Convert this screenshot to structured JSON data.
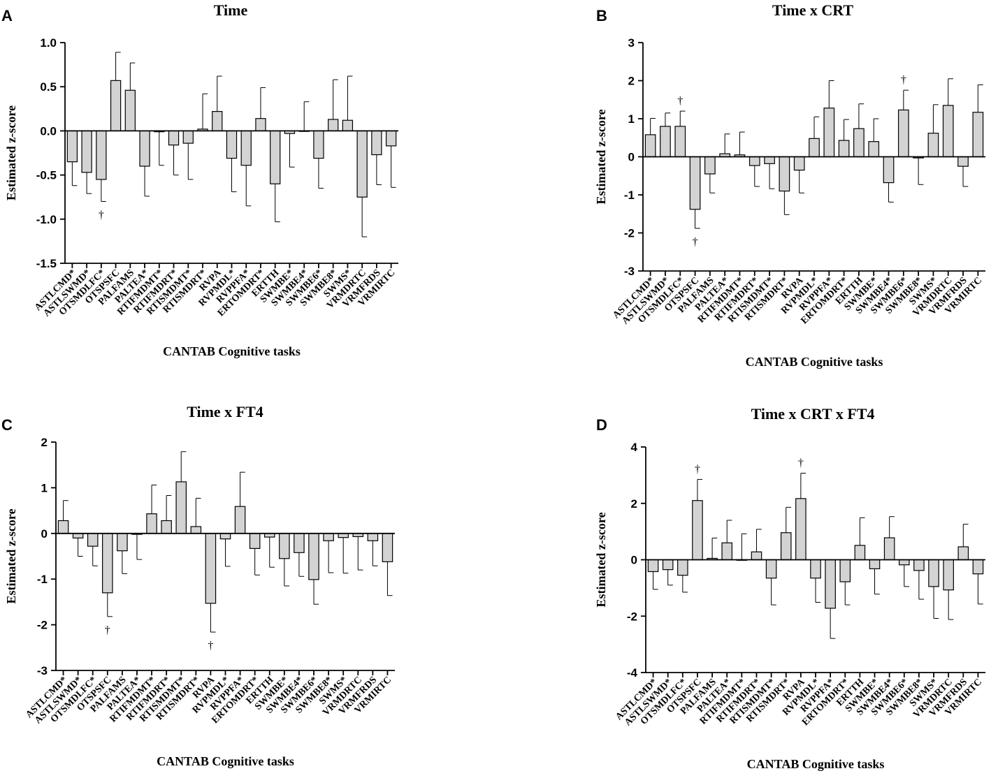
{
  "chart_data": [
    {
      "type": "bar",
      "panel": "A",
      "title": "Time",
      "xlabel": "CANTAB Cognitive tasks",
      "ylabel": "Estimated z-score",
      "ylim": [
        -1.5,
        1.0
      ],
      "yticks": [
        "1.0",
        "0.5",
        "0.0",
        "-0.5",
        "-1.0",
        "-1.5"
      ],
      "ytick_values": [
        1.0,
        0.5,
        0.0,
        -0.5,
        -1.0,
        -1.5
      ],
      "categories": [
        "ASTLCMD*",
        "ASTLSWMD*",
        "OTSMDLFC*",
        "OTSPSFC",
        "PALFAMS",
        "PALTEA*",
        "RTIFMDMT*",
        "RTIFMDRT*",
        "RTISMDMT*",
        "RTISMDRT*",
        "RVPA",
        "RVPMDL*",
        "RVPPFA*",
        "ERTOMDRT*",
        "ERTTH",
        "SWMBE*",
        "SWMBE4*",
        "SWMBE6*",
        "SWMBE8*",
        "SWMS*",
        "VRMDRTC",
        "VRMFRDS",
        "VRMIRTC"
      ],
      "values": [
        -0.35,
        -0.47,
        -0.55,
        0.57,
        0.46,
        -0.4,
        -0.01,
        -0.16,
        -0.14,
        0.02,
        0.22,
        -0.31,
        -0.39,
        0.14,
        -0.6,
        -0.03,
        0.0,
        -0.31,
        0.13,
        0.12,
        -0.75,
        -0.27,
        -0.17
      ],
      "errors": [
        0.27,
        0.24,
        0.25,
        0.32,
        0.31,
        0.34,
        0.38,
        0.34,
        0.41,
        0.4,
        0.4,
        0.38,
        0.46,
        0.35,
        0.43,
        0.38,
        0.33,
        0.34,
        0.45,
        0.5,
        0.45,
        0.34,
        0.47
      ],
      "daggers": [
        {
          "index": 2,
          "position": "below",
          "symbol": "†"
        }
      ]
    },
    {
      "type": "bar",
      "panel": "B",
      "title": "Time x CRT",
      "xlabel": "CANTAB Cognitive tasks",
      "ylabel": "Estimated z-score",
      "ylim": [
        -3,
        3
      ],
      "yticks": [
        "3",
        "2",
        "1",
        "0",
        "-1",
        "-2",
        "-3"
      ],
      "ytick_values": [
        3,
        2,
        1,
        0,
        -1,
        -2,
        -3
      ],
      "categories": [
        "ASTLCMD*",
        "ASTLSWMD*",
        "OTSMDLFC*",
        "OTSPSFC",
        "PALFAMS",
        "PALTEA*",
        "RTIFMDMT*",
        "RTIFMDRT*",
        "RTISMDMT*",
        "RTISMDRT*",
        "RVPA",
        "RVPMDL*",
        "RVPPFA*",
        "ERTOMDRT*",
        "ERTTH",
        "SWMBE*",
        "SWMBE4*",
        "SWMBE6*",
        "SWMBE8*",
        "SWMS*",
        "VRMDRTC",
        "VRMFRDS",
        "VRMIRTC"
      ],
      "values": [
        0.58,
        0.8,
        0.8,
        -1.38,
        -0.45,
        0.08,
        0.05,
        -0.23,
        -0.18,
        -0.9,
        -0.35,
        0.48,
        1.28,
        0.43,
        0.74,
        0.4,
        -0.68,
        1.23,
        -0.03,
        0.62,
        1.35,
        -0.25,
        1.17
      ],
      "errors": [
        0.43,
        0.35,
        0.4,
        0.5,
        0.5,
        0.52,
        0.6,
        0.55,
        0.66,
        0.62,
        0.6,
        0.57,
        0.72,
        0.55,
        0.65,
        0.6,
        0.51,
        0.52,
        0.7,
        0.75,
        0.7,
        0.53,
        0.72
      ],
      "daggers": [
        {
          "index": 2,
          "position": "above",
          "symbol": "†"
        },
        {
          "index": 3,
          "position": "below",
          "symbol": "†"
        },
        {
          "index": 17,
          "position": "above",
          "symbol": "†"
        }
      ]
    },
    {
      "type": "bar",
      "panel": "C",
      "title": "Time x FT4",
      "xlabel": "CANTAB Cognitive tasks",
      "ylabel": "Estimated z-score",
      "ylim": [
        -3,
        2
      ],
      "yticks": [
        "2",
        "1",
        "0",
        "-1",
        "-2",
        "-3"
      ],
      "ytick_values": [
        2,
        1,
        0,
        -1,
        -2,
        -3
      ],
      "categories": [
        "ASTLCMD*",
        "ASTLSWMD*",
        "OTSMDLFC*",
        "OTSPSFC",
        "PALFAMS",
        "PALTEA*",
        "RTIFMDMT*",
        "RTIFMDRT*",
        "RTISMDMT*",
        "RTISMDRT*",
        "RVPA",
        "RVPMDL*",
        "RVPPFA*",
        "ERTOMDRT*",
        "ERTTH",
        "SWMBE*",
        "SWMBE4*",
        "SWMBE6*",
        "SWMBE8*",
        "SWMS*",
        "VRMDRTC",
        "VRMFRDS",
        "VRMIRTC"
      ],
      "values": [
        0.28,
        -0.1,
        -0.28,
        -1.3,
        -0.38,
        -0.02,
        0.43,
        0.28,
        1.13,
        0.15,
        -1.53,
        -0.12,
        0.59,
        -0.33,
        -0.08,
        -0.55,
        -0.42,
        -1.01,
        -0.16,
        -0.09,
        -0.07,
        -0.16,
        -0.62
      ],
      "errors": [
        0.44,
        0.4,
        0.43,
        0.52,
        0.5,
        0.55,
        0.63,
        0.55,
        0.66,
        0.62,
        0.63,
        0.6,
        0.75,
        0.58,
        0.66,
        0.6,
        0.52,
        0.54,
        0.7,
        0.78,
        0.73,
        0.55,
        0.74
      ],
      "daggers": [
        {
          "index": 3,
          "position": "below",
          "symbol": "†"
        },
        {
          "index": 10,
          "position": "below",
          "symbol": "†"
        }
      ]
    },
    {
      "type": "bar",
      "panel": "D",
      "title": "Time x CRT x FT4",
      "xlabel": "CANTAB Cognitive tasks",
      "ylabel": "Estimated z-score",
      "ylim": [
        -4,
        4
      ],
      "yticks": [
        "4",
        "2",
        "0",
        "-2",
        "-4"
      ],
      "ytick_values": [
        4,
        2,
        0,
        -2,
        -4
      ],
      "categories": [
        "ASTLCMD*",
        "ASTLSWMD*",
        "OTSMDLFC*",
        "OTSPSFC",
        "PALFAMS",
        "PALTEA*",
        "RTIFMDMT*",
        "RTIFMDRT*",
        "RTISMDMT*",
        "RTISMDRT*",
        "RVPA",
        "RVPMDL*",
        "RVPPFA*",
        "ERTOMDRT*",
        "ERTTH",
        "SWMBE*",
        "SWMBE4*",
        "SWMBE6*",
        "SWMBE8*",
        "SWMS*",
        "VRMDRTC",
        "VRMFRDS",
        "VRMIRTC"
      ],
      "values": [
        -0.42,
        -0.35,
        -0.55,
        2.1,
        0.05,
        0.6,
        0.0,
        0.28,
        -0.65,
        0.96,
        2.17,
        -0.65,
        -1.72,
        -0.78,
        0.51,
        -0.32,
        0.78,
        -0.18,
        -0.38,
        -0.95,
        -1.07,
        0.46,
        -0.5
      ],
      "errors": [
        0.63,
        0.55,
        0.6,
        0.75,
        0.72,
        0.8,
        0.92,
        0.8,
        0.95,
        0.9,
        0.9,
        0.86,
        1.07,
        0.82,
        0.98,
        0.9,
        0.75,
        0.77,
        1.02,
        1.13,
        1.05,
        0.8,
        1.07
      ],
      "daggers": [
        {
          "index": 3,
          "position": "above",
          "symbol": "†"
        },
        {
          "index": 10,
          "position": "above",
          "symbol": "†"
        }
      ]
    }
  ]
}
